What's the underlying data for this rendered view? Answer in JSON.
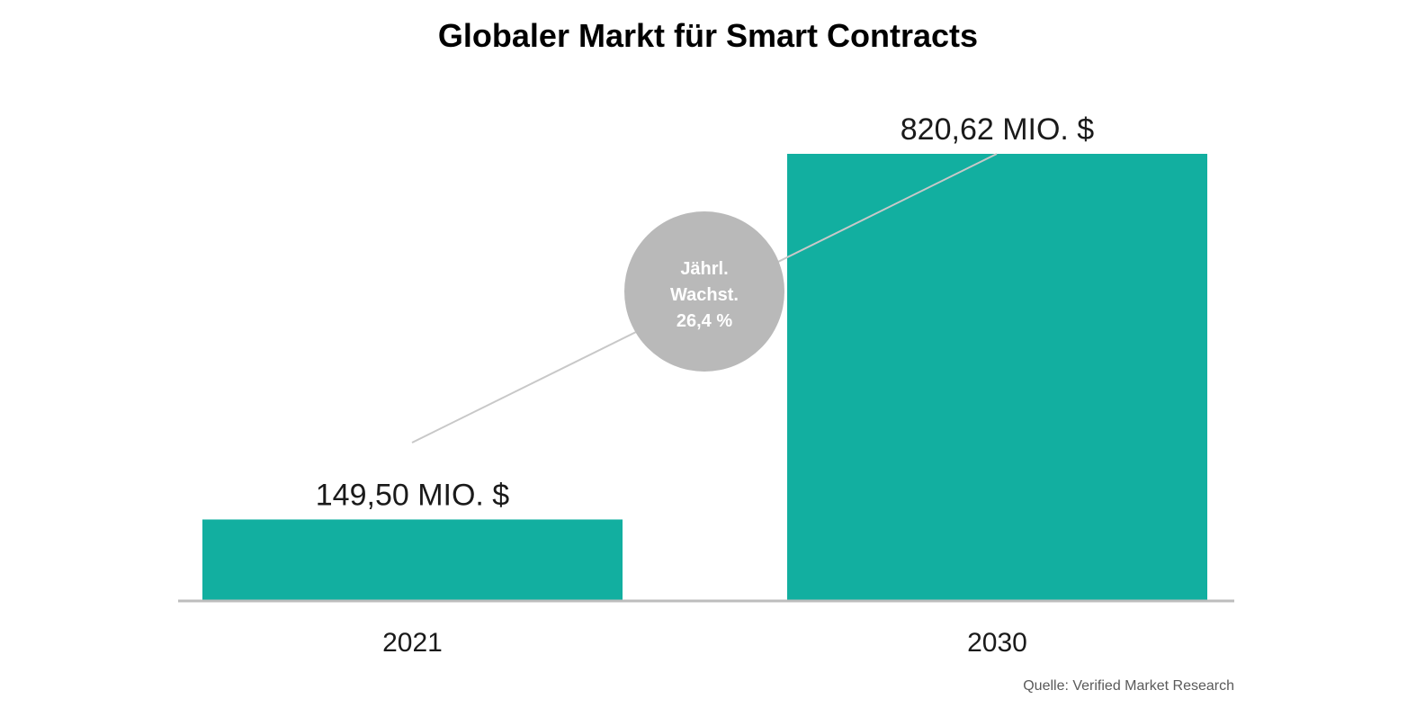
{
  "chart_data": {
    "type": "bar",
    "title": "Globaler Markt für Smart Contracts",
    "categories": [
      "2021",
      "2030"
    ],
    "values": [
      149.5,
      820.62
    ],
    "value_labels": [
      "149,50 MIO. $",
      "820,62 MIO. $"
    ],
    "unit": "MIO. $",
    "ylim": [
      0,
      820.62
    ],
    "xlabel": "",
    "ylabel": "",
    "grid": false,
    "annotation": {
      "lines": [
        "Jährl.",
        "Wachst.",
        "26,4 %"
      ],
      "cagr_percent": 26.4
    },
    "source": "Quelle:  Verified Market Research"
  },
  "colors": {
    "bar": "#12afa0",
    "axis": "#bdbdbd",
    "trend_line": "#c8c8c8",
    "badge": "#b9b9b9",
    "text": "#1a1a1a"
  }
}
